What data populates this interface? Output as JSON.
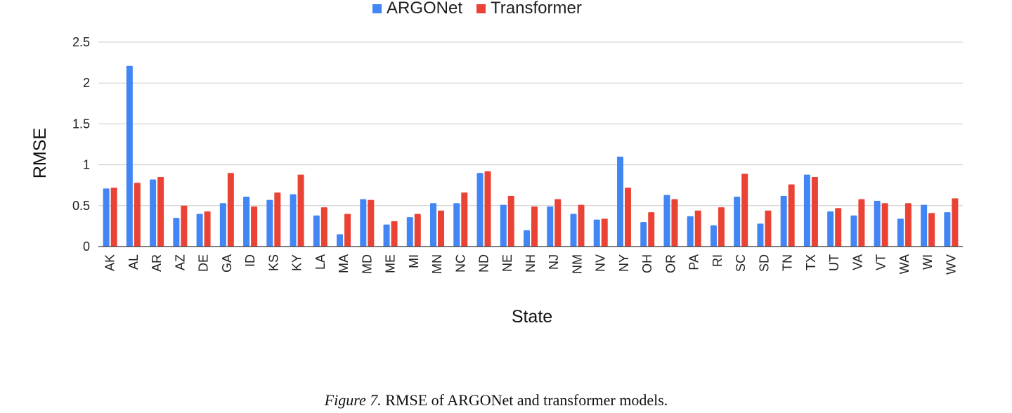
{
  "chart_data": {
    "type": "bar",
    "title": "",
    "xlabel": "State",
    "ylabel": "RMSE",
    "ylim": [
      0,
      2.5
    ],
    "yticks": [
      "0",
      "0.5",
      "1",
      "1.5",
      "2",
      "2.5"
    ],
    "grid": true,
    "legend_position": "top-center",
    "categories": [
      "AK",
      "AL",
      "AR",
      "AZ",
      "DE",
      "GA",
      "ID",
      "KS",
      "KY",
      "LA",
      "MA",
      "MD",
      "ME",
      "MI",
      "MN",
      "NC",
      "ND",
      "NE",
      "NH",
      "NJ",
      "NM",
      "NV",
      "NY",
      "OH",
      "OR",
      "PA",
      "RI",
      "SC",
      "SD",
      "TN",
      "TX",
      "UT",
      "VA",
      "VT",
      "WA",
      "WI",
      "WV"
    ],
    "series": [
      {
        "name": "ARGONet",
        "color": "#4285f4",
        "values": [
          0.71,
          2.21,
          0.82,
          0.35,
          0.4,
          0.53,
          0.61,
          0.57,
          0.64,
          0.38,
          0.15,
          0.58,
          0.27,
          0.36,
          0.53,
          0.53,
          0.9,
          0.51,
          0.2,
          0.49,
          0.4,
          0.33,
          1.1,
          0.3,
          0.63,
          0.37,
          0.26,
          0.61,
          0.28,
          0.62,
          0.88,
          0.43,
          0.38,
          0.56,
          0.34,
          0.51,
          0.42
        ]
      },
      {
        "name": "Transformer",
        "color": "#ea4335",
        "values": [
          0.72,
          0.78,
          0.85,
          0.5,
          0.43,
          0.9,
          0.49,
          0.66,
          0.88,
          0.48,
          0.4,
          0.57,
          0.31,
          0.4,
          0.44,
          0.66,
          0.92,
          0.62,
          0.49,
          0.58,
          0.51,
          0.34,
          0.72,
          0.42,
          0.58,
          0.44,
          0.48,
          0.89,
          0.44,
          0.76,
          0.85,
          0.47,
          0.58,
          0.53,
          0.53,
          0.41,
          0.59
        ]
      }
    ]
  },
  "caption": {
    "figure_label": "Figure 7.",
    "text": " RMSE of ARGONet and transformer models."
  }
}
